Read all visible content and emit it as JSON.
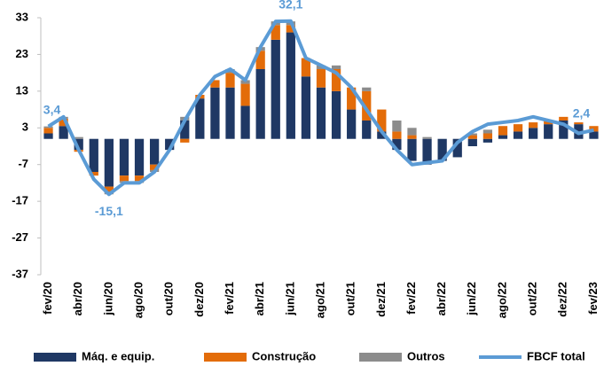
{
  "chart_data": {
    "type": "bar",
    "stacked": true,
    "categories": [
      "fev/20",
      null,
      "abr/20",
      null,
      "jun/20",
      null,
      "ago/20",
      null,
      "out/20",
      null,
      "dez/20",
      null,
      "fev/21",
      null,
      "abr/21",
      null,
      "jun/21",
      null,
      "ago/21",
      null,
      "out/21",
      null,
      "dez/21",
      null,
      "fev/22",
      null,
      "abr/22",
      null,
      "jun/22",
      null,
      "ago/22",
      null,
      "out/22",
      null,
      "dez/22",
      null,
      "fev/23"
    ],
    "series": [
      {
        "name": "Máq. e equip.",
        "color": "#1f3864",
        "values": [
          1.5,
          3.5,
          -3,
          -9,
          -13,
          -10,
          -10,
          -7,
          -3,
          5,
          11,
          14,
          14,
          9,
          19,
          27,
          29,
          17,
          14,
          13,
          8,
          5,
          2,
          -3,
          -6,
          -7,
          -6,
          -5,
          -2,
          -1,
          1,
          2,
          3,
          4,
          5,
          4,
          2
        ]
      },
      {
        "name": "Construção",
        "color": "#e36c09",
        "values": [
          1.5,
          2,
          -0.5,
          -1,
          -1.5,
          -1.5,
          -1.5,
          -1.5,
          0,
          -1,
          1,
          2,
          4,
          6,
          5,
          4,
          2,
          5,
          5,
          6,
          6,
          8,
          6,
          2,
          1,
          0,
          0,
          0,
          1,
          1.5,
          2.5,
          2,
          1.5,
          1,
          1,
          0.5,
          1.5
        ]
      },
      {
        "name": "Outros",
        "color": "#8c8c8c",
        "values": [
          0.4,
          0.5,
          0.5,
          0,
          -0.6,
          -0.5,
          -0.5,
          -0.5,
          0,
          1,
          0,
          0,
          1,
          1,
          1,
          1,
          1,
          0,
          1,
          1,
          0,
          1,
          0,
          3,
          2,
          0.5,
          0,
          0,
          0.5,
          1,
          0,
          0,
          0,
          0,
          0,
          0,
          0
        ]
      },
      {
        "name": "FBCF total",
        "color": "#5b9bd5",
        "type": "line",
        "values": [
          3.4,
          6,
          -3,
          -11,
          -15.1,
          -12,
          -12,
          -9,
          -3,
          5,
          12,
          17,
          19,
          16,
          25,
          32,
          32.1,
          22,
          20,
          18,
          14,
          8,
          2,
          -3,
          -7,
          -6.5,
          -6,
          -1,
          2,
          4,
          4.5,
          5,
          6,
          5,
          4,
          1.5,
          2.4
        ],
        "value_labels": [
          "3,4",
          null,
          null,
          null,
          "-15,1",
          null,
          null,
          null,
          null,
          null,
          null,
          null,
          null,
          null,
          null,
          null,
          "32,1",
          null,
          null,
          null,
          null,
          null,
          null,
          null,
          null,
          null,
          null,
          null,
          null,
          null,
          null,
          null,
          null,
          null,
          null,
          null,
          "2,4"
        ]
      }
    ],
    "ylim": [
      -37,
      33
    ],
    "yticks": [
      -37,
      -27,
      -17,
      -7,
      3,
      13,
      23,
      33
    ],
    "grid": false,
    "legend": "bottom"
  }
}
